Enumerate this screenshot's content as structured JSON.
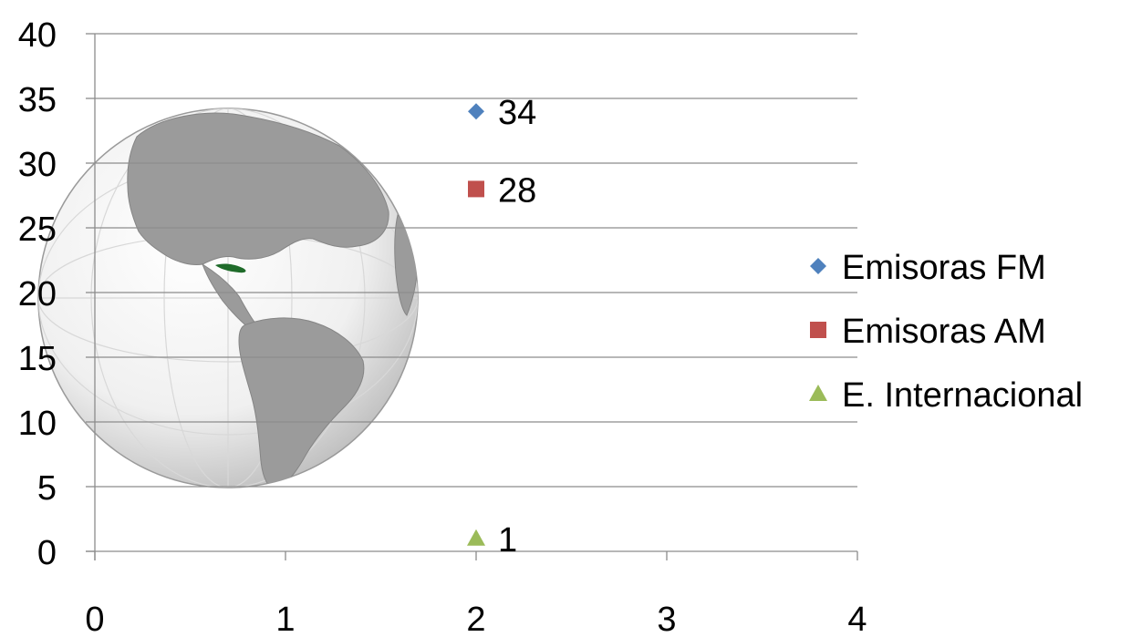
{
  "chart_data": {
    "type": "scatter",
    "xlim": [
      0,
      4
    ],
    "ylim": [
      0,
      40
    ],
    "x_ticks": [
      0,
      1,
      2,
      3,
      4
    ],
    "y_ticks": [
      0,
      5,
      10,
      15,
      20,
      25,
      30,
      35,
      40
    ],
    "grid": "horizontal",
    "legend_position": "right",
    "series": [
      {
        "name": "Emisoras FM",
        "marker": "diamond",
        "color": "#4F81BD",
        "points": [
          {
            "x": 2,
            "y": 34,
            "label": "34"
          }
        ]
      },
      {
        "name": "Emisoras AM",
        "marker": "square",
        "color": "#C0504D",
        "points": [
          {
            "x": 2,
            "y": 28,
            "label": "28"
          }
        ]
      },
      {
        "name": "E. Internacional",
        "marker": "triangle",
        "color": "#9BBB59",
        "points": [
          {
            "x": 2,
            "y": 1,
            "label": "1"
          }
        ]
      }
    ]
  },
  "background_image": "globe-icon"
}
